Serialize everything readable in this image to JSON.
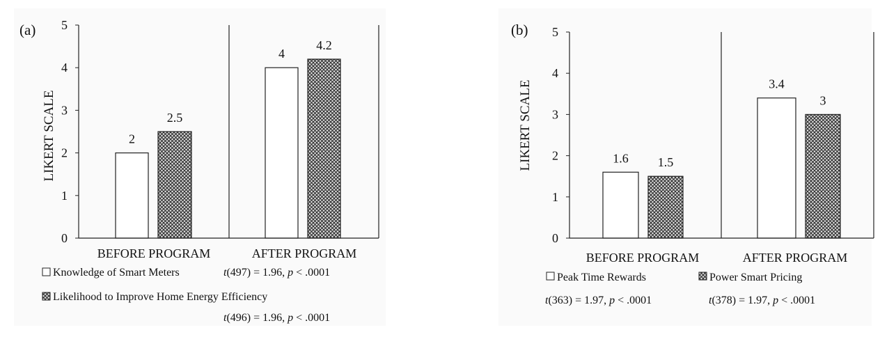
{
  "chart_data": [
    {
      "type": "bar",
      "panel_label": "(a)",
      "ylabel": "LIKERT SCALE",
      "ylim": [
        0,
        5
      ],
      "yticks": [
        "0",
        "1",
        "2",
        "3",
        "4",
        "5"
      ],
      "categories": [
        "BEFORE PROGRAM",
        "AFTER PROGRAM"
      ],
      "series": [
        {
          "name": "Knowledge of Smart Meters",
          "values": [
            2,
            4
          ],
          "value_labels": [
            "2",
            "4"
          ],
          "fill": "white"
        },
        {
          "name": "Likelihood to Improve Home Energy Efficiency",
          "values": [
            2.5,
            4.2
          ],
          "value_labels": [
            "2.5",
            "4.2"
          ],
          "fill": "crosshatch"
        }
      ],
      "stats": [
        {
          "t": "t",
          "rest": "(497) = 1.96, ",
          "p": "p",
          "tail": " < .0001"
        },
        {
          "t": "t",
          "rest": "(496) = 1.96, ",
          "p": "p",
          "tail": " < .0001"
        }
      ]
    },
    {
      "type": "bar",
      "panel_label": "(b)",
      "ylabel": "LIKERT SCALE",
      "ylim": [
        0,
        5
      ],
      "yticks": [
        "0",
        "1",
        "2",
        "3",
        "4",
        "5"
      ],
      "categories": [
        "BEFORE PROGRAM",
        "AFTER PROGRAM"
      ],
      "series": [
        {
          "name": "Peak Time Rewards",
          "values": [
            1.6,
            3.4
          ],
          "value_labels": [
            "1.6",
            "3.4"
          ],
          "fill": "white"
        },
        {
          "name": "Power Smart Pricing",
          "values": [
            1.5,
            3
          ],
          "value_labels": [
            "1.5",
            "3"
          ],
          "fill": "crosshatch"
        }
      ],
      "stats": [
        {
          "t": "t",
          "rest": "(363) = 1.97, ",
          "p": "p",
          "tail": " < .0001"
        },
        {
          "t": "t",
          "rest": "(378) = 1.97, ",
          "p": "p",
          "tail": " < .0001"
        }
      ]
    }
  ]
}
